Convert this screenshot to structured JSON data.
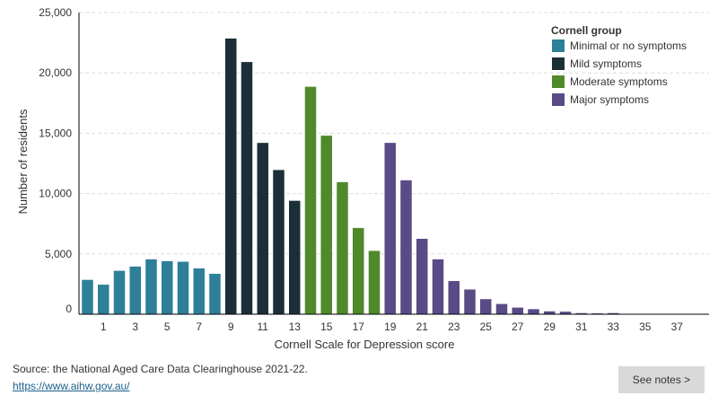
{
  "chart_data": {
    "type": "bar",
    "title": "",
    "xlabel": "Cornell Scale for Depression score",
    "ylabel": "Number of residents",
    "ylim": [
      0,
      25000
    ],
    "yticks": [
      0,
      5000,
      10000,
      15000,
      20000,
      25000
    ],
    "ytick_labels": [
      "0",
      "5,000",
      "10,000",
      "15,000",
      "20,000",
      "25,000"
    ],
    "categories": [
      0,
      1,
      2,
      3,
      4,
      5,
      6,
      7,
      8,
      9,
      10,
      11,
      12,
      13,
      14,
      15,
      16,
      17,
      18,
      19,
      20,
      21,
      22,
      23,
      24,
      25,
      26,
      27,
      28,
      29,
      30,
      31,
      32,
      33,
      34,
      35,
      36,
      37,
      38
    ],
    "xtick_labels": [
      "1",
      "3",
      "5",
      "7",
      "9",
      "11",
      "13",
      "15",
      "17",
      "19",
      "21",
      "23",
      "25",
      "27",
      "29",
      "31",
      "33",
      "35",
      "37"
    ],
    "xtick_values": [
      1,
      3,
      5,
      7,
      9,
      11,
      13,
      15,
      17,
      19,
      21,
      23,
      25,
      27,
      29,
      31,
      33,
      35,
      37
    ],
    "values": [
      2850,
      2450,
      3600,
      3950,
      4550,
      4400,
      4350,
      3800,
      3350,
      22850,
      20900,
      14200,
      11950,
      9400,
      18850,
      14800,
      10950,
      7150,
      5250,
      14200,
      11100,
      6250,
      4550,
      2750,
      2050,
      1250,
      850,
      550,
      420,
      240,
      210,
      95,
      70,
      95,
      25,
      15,
      10,
      10,
      5
    ],
    "groups": [
      "minimal",
      "minimal",
      "minimal",
      "minimal",
      "minimal",
      "minimal",
      "minimal",
      "minimal",
      "minimal",
      "mild",
      "mild",
      "mild",
      "mild",
      "mild",
      "moderate",
      "moderate",
      "moderate",
      "moderate",
      "moderate",
      "major",
      "major",
      "major",
      "major",
      "major",
      "major",
      "major",
      "major",
      "major",
      "major",
      "major",
      "major",
      "major",
      "major",
      "major",
      "major",
      "major",
      "major",
      "major",
      "major"
    ],
    "legend": {
      "title": "Cornell group",
      "position": "top-right",
      "items": [
        {
          "key": "minimal",
          "label": "Minimal or no symptoms",
          "color": "#2e7f98"
        },
        {
          "key": "mild",
          "label": "Mild symptoms",
          "color": "#1b2f36"
        },
        {
          "key": "moderate",
          "label": "Moderate symptoms",
          "color": "#4e8a2a"
        },
        {
          "key": "major",
          "label": "Major symptoms",
          "color": "#5a4a86"
        }
      ]
    },
    "grid": true
  },
  "footer": {
    "source": "Source: the National Aged Care Data Clearinghouse 2021-22.",
    "link": "https://www.aihw.gov.au/",
    "notes_button": "See notes >"
  }
}
